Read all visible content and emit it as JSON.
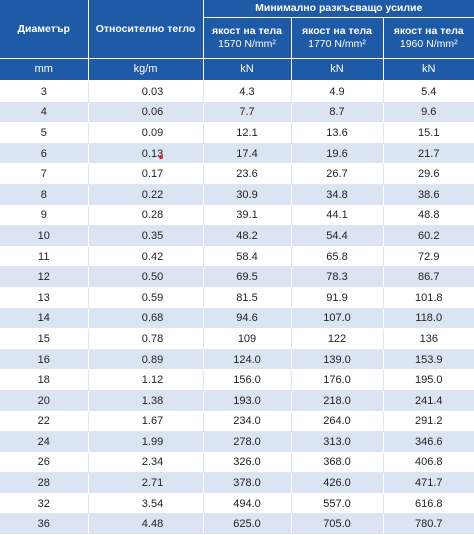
{
  "headers": {
    "diameter": "Диаметър",
    "weight": "Относително тегло",
    "group": "Минимално разкъсващо усилие",
    "strength_label": "якост на тела",
    "strengths": [
      "1570 N/mm²",
      "1770 N/mm²",
      "1960 N/mm²"
    ],
    "units": [
      "mm",
      "kg/m",
      "kN",
      "kN",
      "kN"
    ]
  },
  "rows": [
    [
      "3",
      "0.03",
      "4.3",
      "4.9",
      "5.4"
    ],
    [
      "4",
      "0.06",
      "7.7",
      "8.7",
      "9.6"
    ],
    [
      "5",
      "0.09",
      "12.1",
      "13.6",
      "15.1"
    ],
    [
      "6",
      "0.13",
      "17.4",
      "19.6",
      "21.7"
    ],
    [
      "7",
      "0.17",
      "23.6",
      "26.7",
      "29.6"
    ],
    [
      "8",
      "0.22",
      "30.9",
      "34.8",
      "38.6"
    ],
    [
      "9",
      "0.28",
      "39.1",
      "44.1",
      "48.8"
    ],
    [
      "10",
      "0.35",
      "48.2",
      "54.4",
      "60.2"
    ],
    [
      "11",
      "0.42",
      "58.4",
      "65.8",
      "72.9"
    ],
    [
      "12",
      "0.50",
      "69.5",
      "78.3",
      "86.7"
    ],
    [
      "13",
      "0.59",
      "81.5",
      "91.9",
      "101.8"
    ],
    [
      "14",
      "0.68",
      "94.6",
      "107.0",
      "118.0"
    ],
    [
      "15",
      "0.78",
      "109",
      "122",
      "136"
    ],
    [
      "16",
      "0.89",
      "124.0",
      "139.0",
      "153.9"
    ],
    [
      "18",
      "1.12",
      "156.0",
      "176.0",
      "195.0"
    ],
    [
      "20",
      "1.38",
      "193.0",
      "218.0",
      "241.4"
    ],
    [
      "22",
      "1.67",
      "234.0",
      "264.0",
      "291.2"
    ],
    [
      "24",
      "1.99",
      "278.0",
      "313.0",
      "346.6"
    ],
    [
      "26",
      "2.34",
      "326.0",
      "368.0",
      "406.8"
    ],
    [
      "28",
      "2.71",
      "378.0",
      "426.0",
      "471.7"
    ],
    [
      "32",
      "3.54",
      "494.0",
      "557.0",
      "616.8"
    ],
    [
      "36",
      "4.48",
      "625.0",
      "705.0",
      "780.7"
    ]
  ]
}
